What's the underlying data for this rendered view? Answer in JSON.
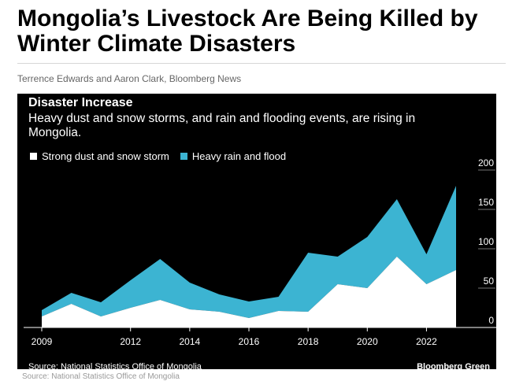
{
  "article": {
    "headline": "Mongolia’s Livestock Are Being Killed by Winter Climate Disasters",
    "byline": "Terrence Edwards and Aaron Clark, Bloomberg News"
  },
  "card": {
    "source": "Source: National Statistics Office of Mongolia",
    "brand": "Bloomberg Green",
    "source_shadow": "Source: National Statistics Office of Mongolia"
  },
  "colors": {
    "background": "#000000",
    "dust": "#ffffff",
    "rain": "#3cb4d2"
  },
  "chart_data": {
    "type": "area",
    "stacked": true,
    "title": "Disaster Increase",
    "subtitle": "Heavy dust and snow storms, and rain and flooding events, are rising in Mongolia.",
    "x": [
      2009,
      2010,
      2011,
      2012,
      2013,
      2014,
      2015,
      2016,
      2017,
      2018,
      2019,
      2020,
      2021,
      2022,
      2023
    ],
    "series": [
      {
        "name": "Strong dust and snow storm",
        "color": "#ffffff",
        "values": [
          14,
          30,
          14,
          25,
          35,
          23,
          20,
          12,
          21,
          20,
          55,
          50,
          90,
          55,
          73
        ]
      },
      {
        "name": "Heavy rain and flood",
        "color": "#3cb4d2",
        "values": [
          8,
          14,
          18,
          35,
          52,
          34,
          22,
          21,
          18,
          75,
          35,
          65,
          73,
          38,
          107
        ]
      }
    ],
    "xticks": [
      "2009",
      "2012",
      "2014",
      "2016",
      "2018",
      "2020",
      "2022"
    ],
    "yticks": [
      "0",
      "50",
      "100",
      "150",
      "200"
    ],
    "ylim": [
      0,
      200
    ],
    "xlim": [
      2009,
      2023
    ],
    "y_axis_side": "right",
    "legend_position": "top-left",
    "grid": false
  }
}
